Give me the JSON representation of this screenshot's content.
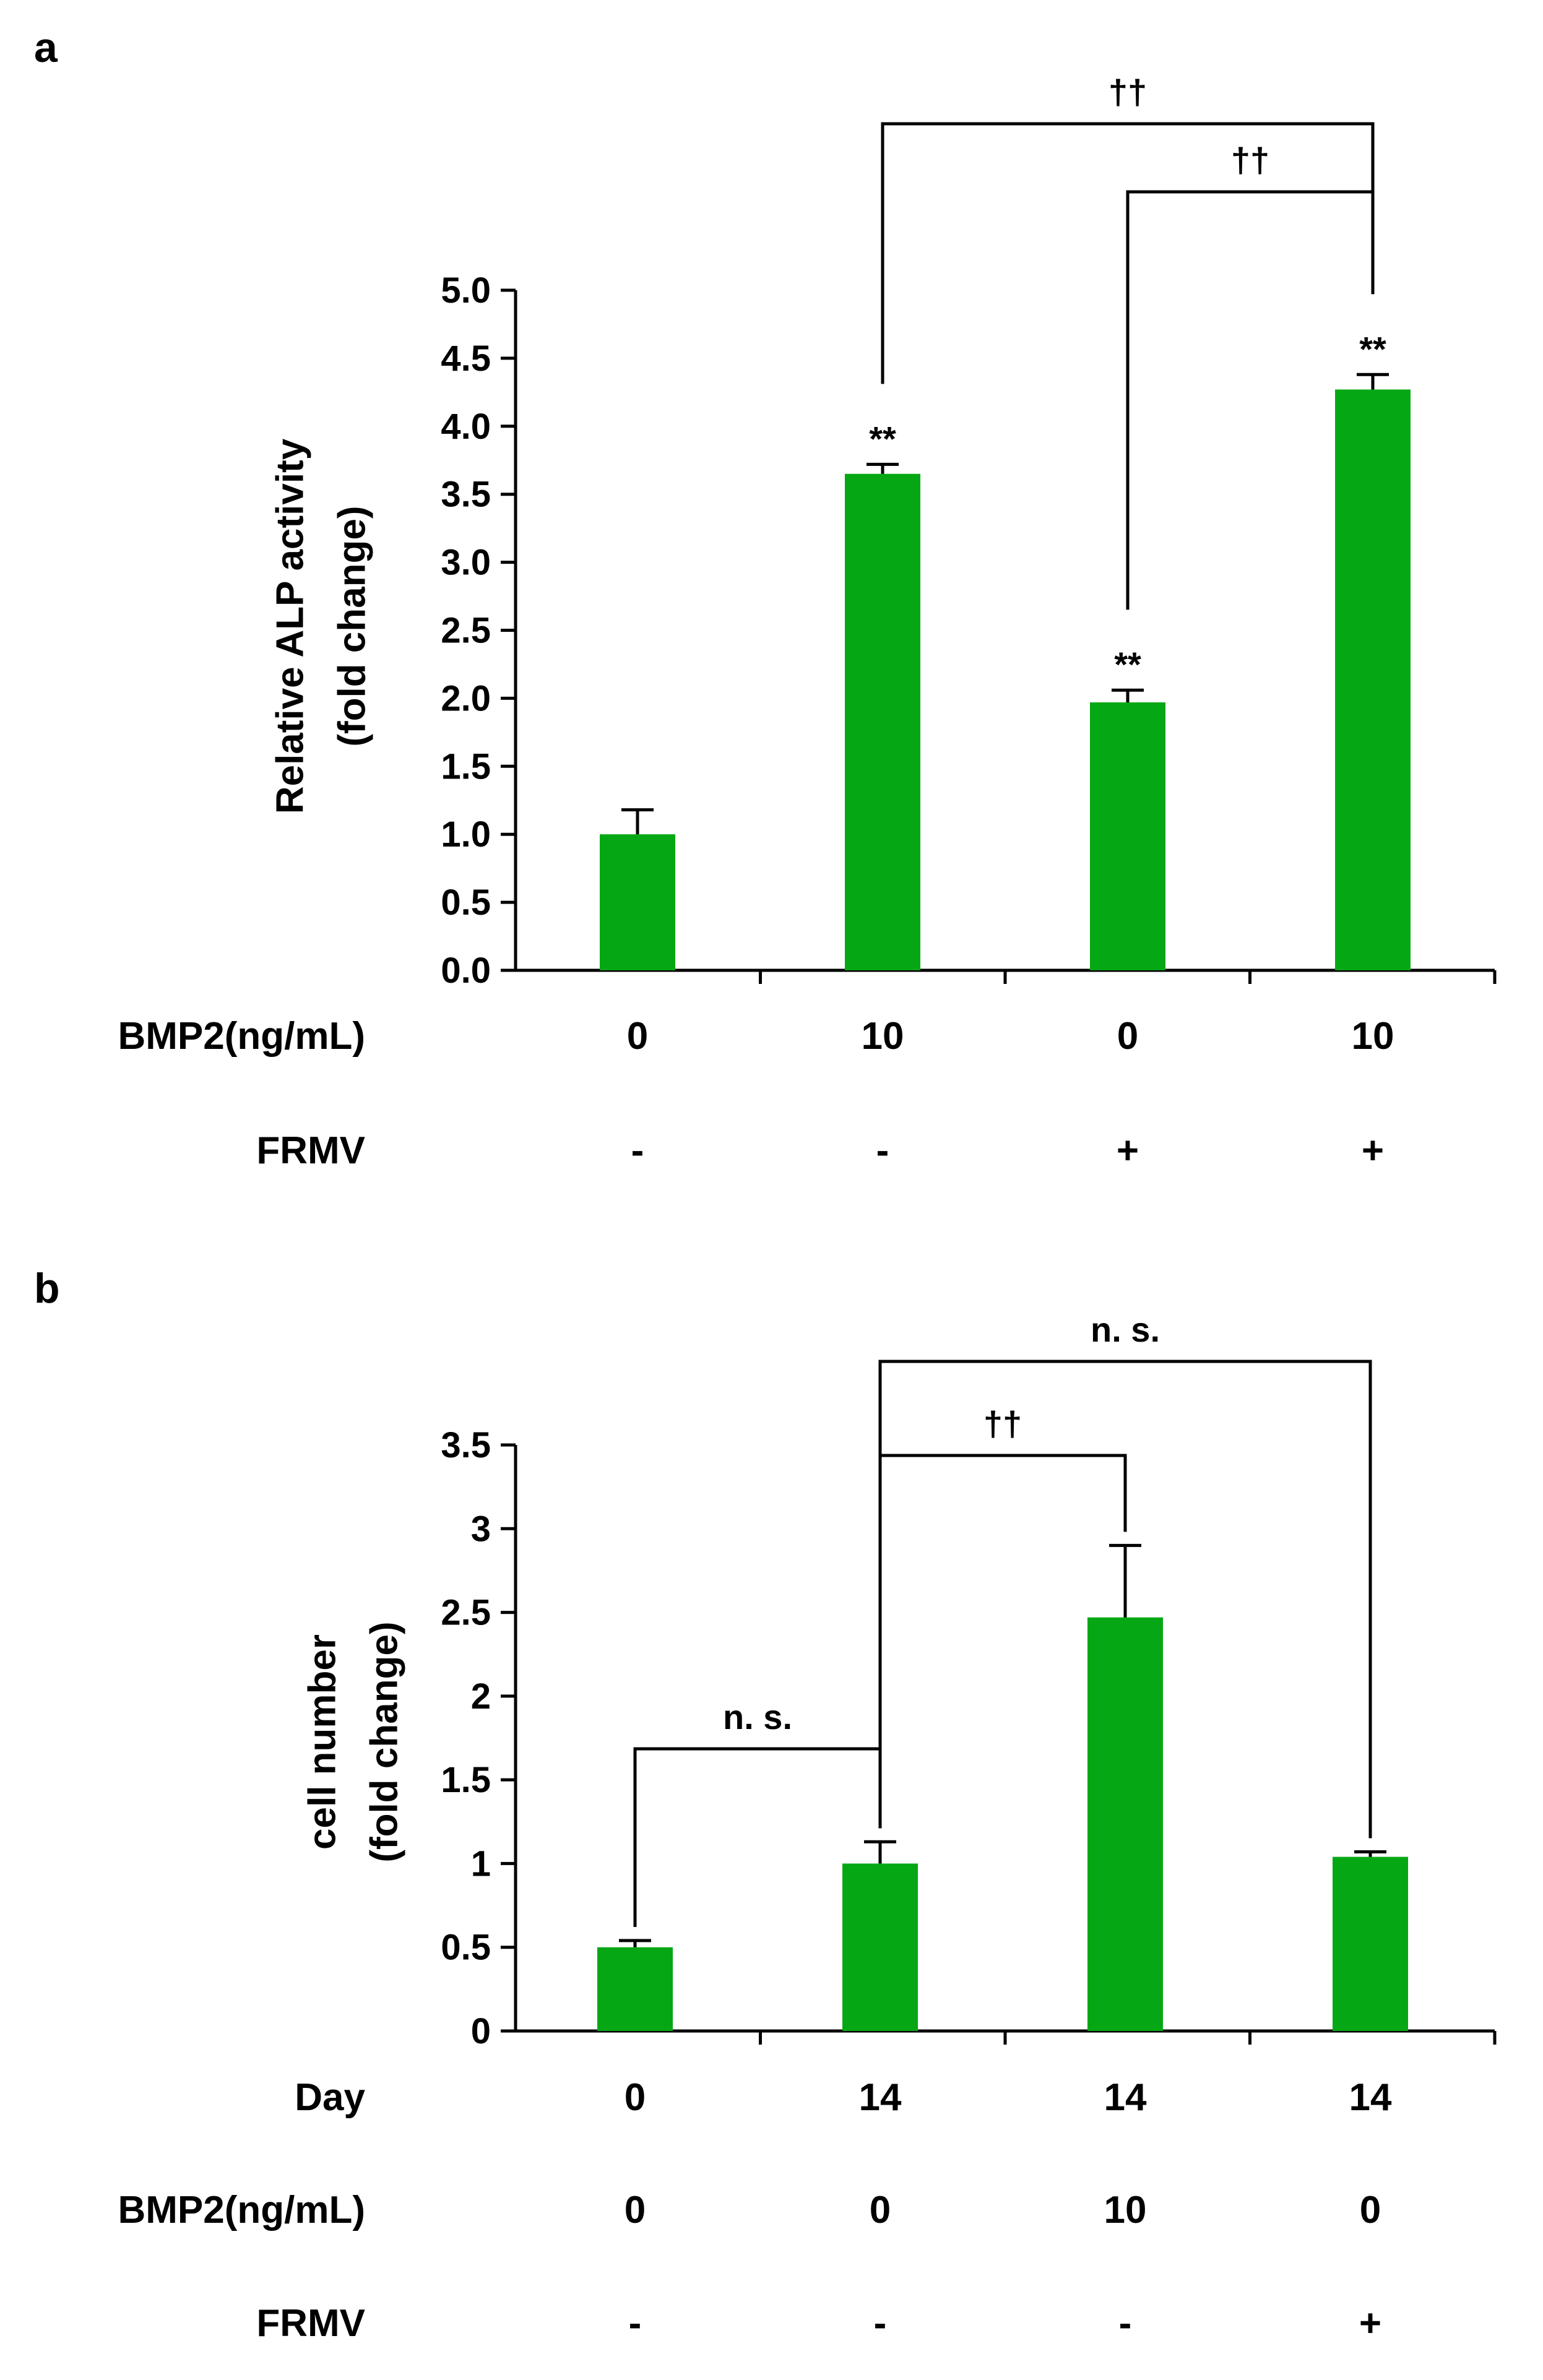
{
  "chart_data": [
    {
      "panel": "a",
      "type": "bar",
      "bar_color": "#05a814",
      "ylabel_lines": [
        "Relative ALP activity",
        "(fold change)"
      ],
      "ylim": [
        0,
        5.0
      ],
      "yticks": [
        "0.0",
        "0.5",
        "1.0",
        "1.5",
        "2.0",
        "2.5",
        "3.0",
        "3.5",
        "4.0",
        "4.5",
        "5.0"
      ],
      "values": [
        1.0,
        3.65,
        1.97,
        4.27
      ],
      "errors": [
        0.18,
        0.07,
        0.09,
        0.11
      ],
      "bar_labels": [
        "",
        "**",
        "**",
        "**"
      ],
      "rows": [
        {
          "label": "BMP2(ng/mL)",
          "cells": [
            "0",
            "10",
            "0",
            "10"
          ]
        },
        {
          "label": "FRMV",
          "cells": [
            "-",
            "-",
            "+",
            "+"
          ]
        }
      ],
      "brackets": [
        {
          "from": 1,
          "to": 3,
          "label": "††"
        },
        {
          "from": 2,
          "to": 3,
          "label": "††"
        }
      ]
    },
    {
      "panel": "b",
      "type": "bar",
      "bar_color": "#05a814",
      "ylabel_lines": [
        "cell number",
        "(fold change)"
      ],
      "ylim": [
        0,
        3.5
      ],
      "yticks": [
        "0",
        "0.5",
        "1",
        "1.5",
        "2",
        "2.5",
        "3",
        "3.5"
      ],
      "values": [
        0.5,
        1.0,
        2.47,
        1.04
      ],
      "errors": [
        0.04,
        0.13,
        0.43,
        0.03
      ],
      "bar_labels": [
        "",
        "",
        "",
        ""
      ],
      "rows": [
        {
          "label": "Day",
          "cells": [
            "0",
            "14",
            "14",
            "14"
          ]
        },
        {
          "label": "BMP2(ng/mL)",
          "cells": [
            "0",
            "0",
            "10",
            "0"
          ]
        },
        {
          "label": "FRMV",
          "cells": [
            "-",
            "-",
            "-",
            "+"
          ]
        }
      ],
      "brackets": [
        {
          "from": 0,
          "to": 1,
          "label": "n. s."
        },
        {
          "from": 1,
          "to": 2,
          "label": "††"
        },
        {
          "from": 1,
          "to": 3,
          "label": "n. s."
        }
      ]
    }
  ]
}
